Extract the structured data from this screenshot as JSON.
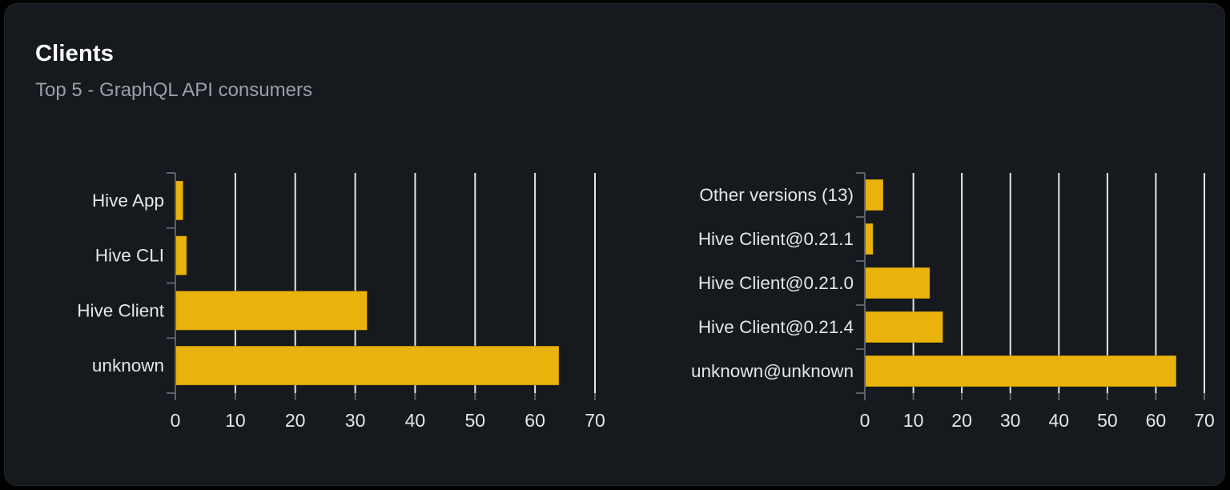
{
  "header": {
    "title": "Clients",
    "subtitle": "Top 5 - GraphQL API consumers"
  },
  "colors": {
    "page_bg": "#000000",
    "card_bg": "#16191e",
    "title": "#ffffff",
    "subtitle": "#9aa0a7",
    "bar": "#e9b30c",
    "bar_stroke": "rgba(0,0,0,0.28)",
    "grid": "#e4e6ed",
    "axis": "#5b616a",
    "tick_label": "#e4e6e9"
  },
  "chart_data": [
    {
      "type": "bar",
      "orientation": "horizontal",
      "name": "clients-by-name",
      "categories": [
        "Hive App",
        "Hive CLI",
        "Hive Client",
        "unknown"
      ],
      "values": [
        1.3,
        1.9,
        32,
        64
      ],
      "xlim": [
        0,
        70
      ],
      "xticks": [
        0,
        10,
        20,
        30,
        40,
        50,
        60,
        70
      ],
      "grid": true,
      "legend": "none",
      "xlabel": "",
      "ylabel": ""
    },
    {
      "type": "bar",
      "orientation": "horizontal",
      "name": "clients-by-version",
      "categories": [
        "Other versions (13)",
        "Hive Client@0.21.1",
        "Hive Client@0.21.0",
        "Hive Client@0.21.4",
        "unknown@unknown"
      ],
      "values": [
        3.8,
        1.7,
        13.4,
        16.1,
        64.2
      ],
      "xlim": [
        0,
        70
      ],
      "xticks": [
        0,
        10,
        20,
        30,
        40,
        50,
        60,
        70
      ],
      "grid": true,
      "legend": "none",
      "xlabel": "",
      "ylabel": ""
    }
  ]
}
